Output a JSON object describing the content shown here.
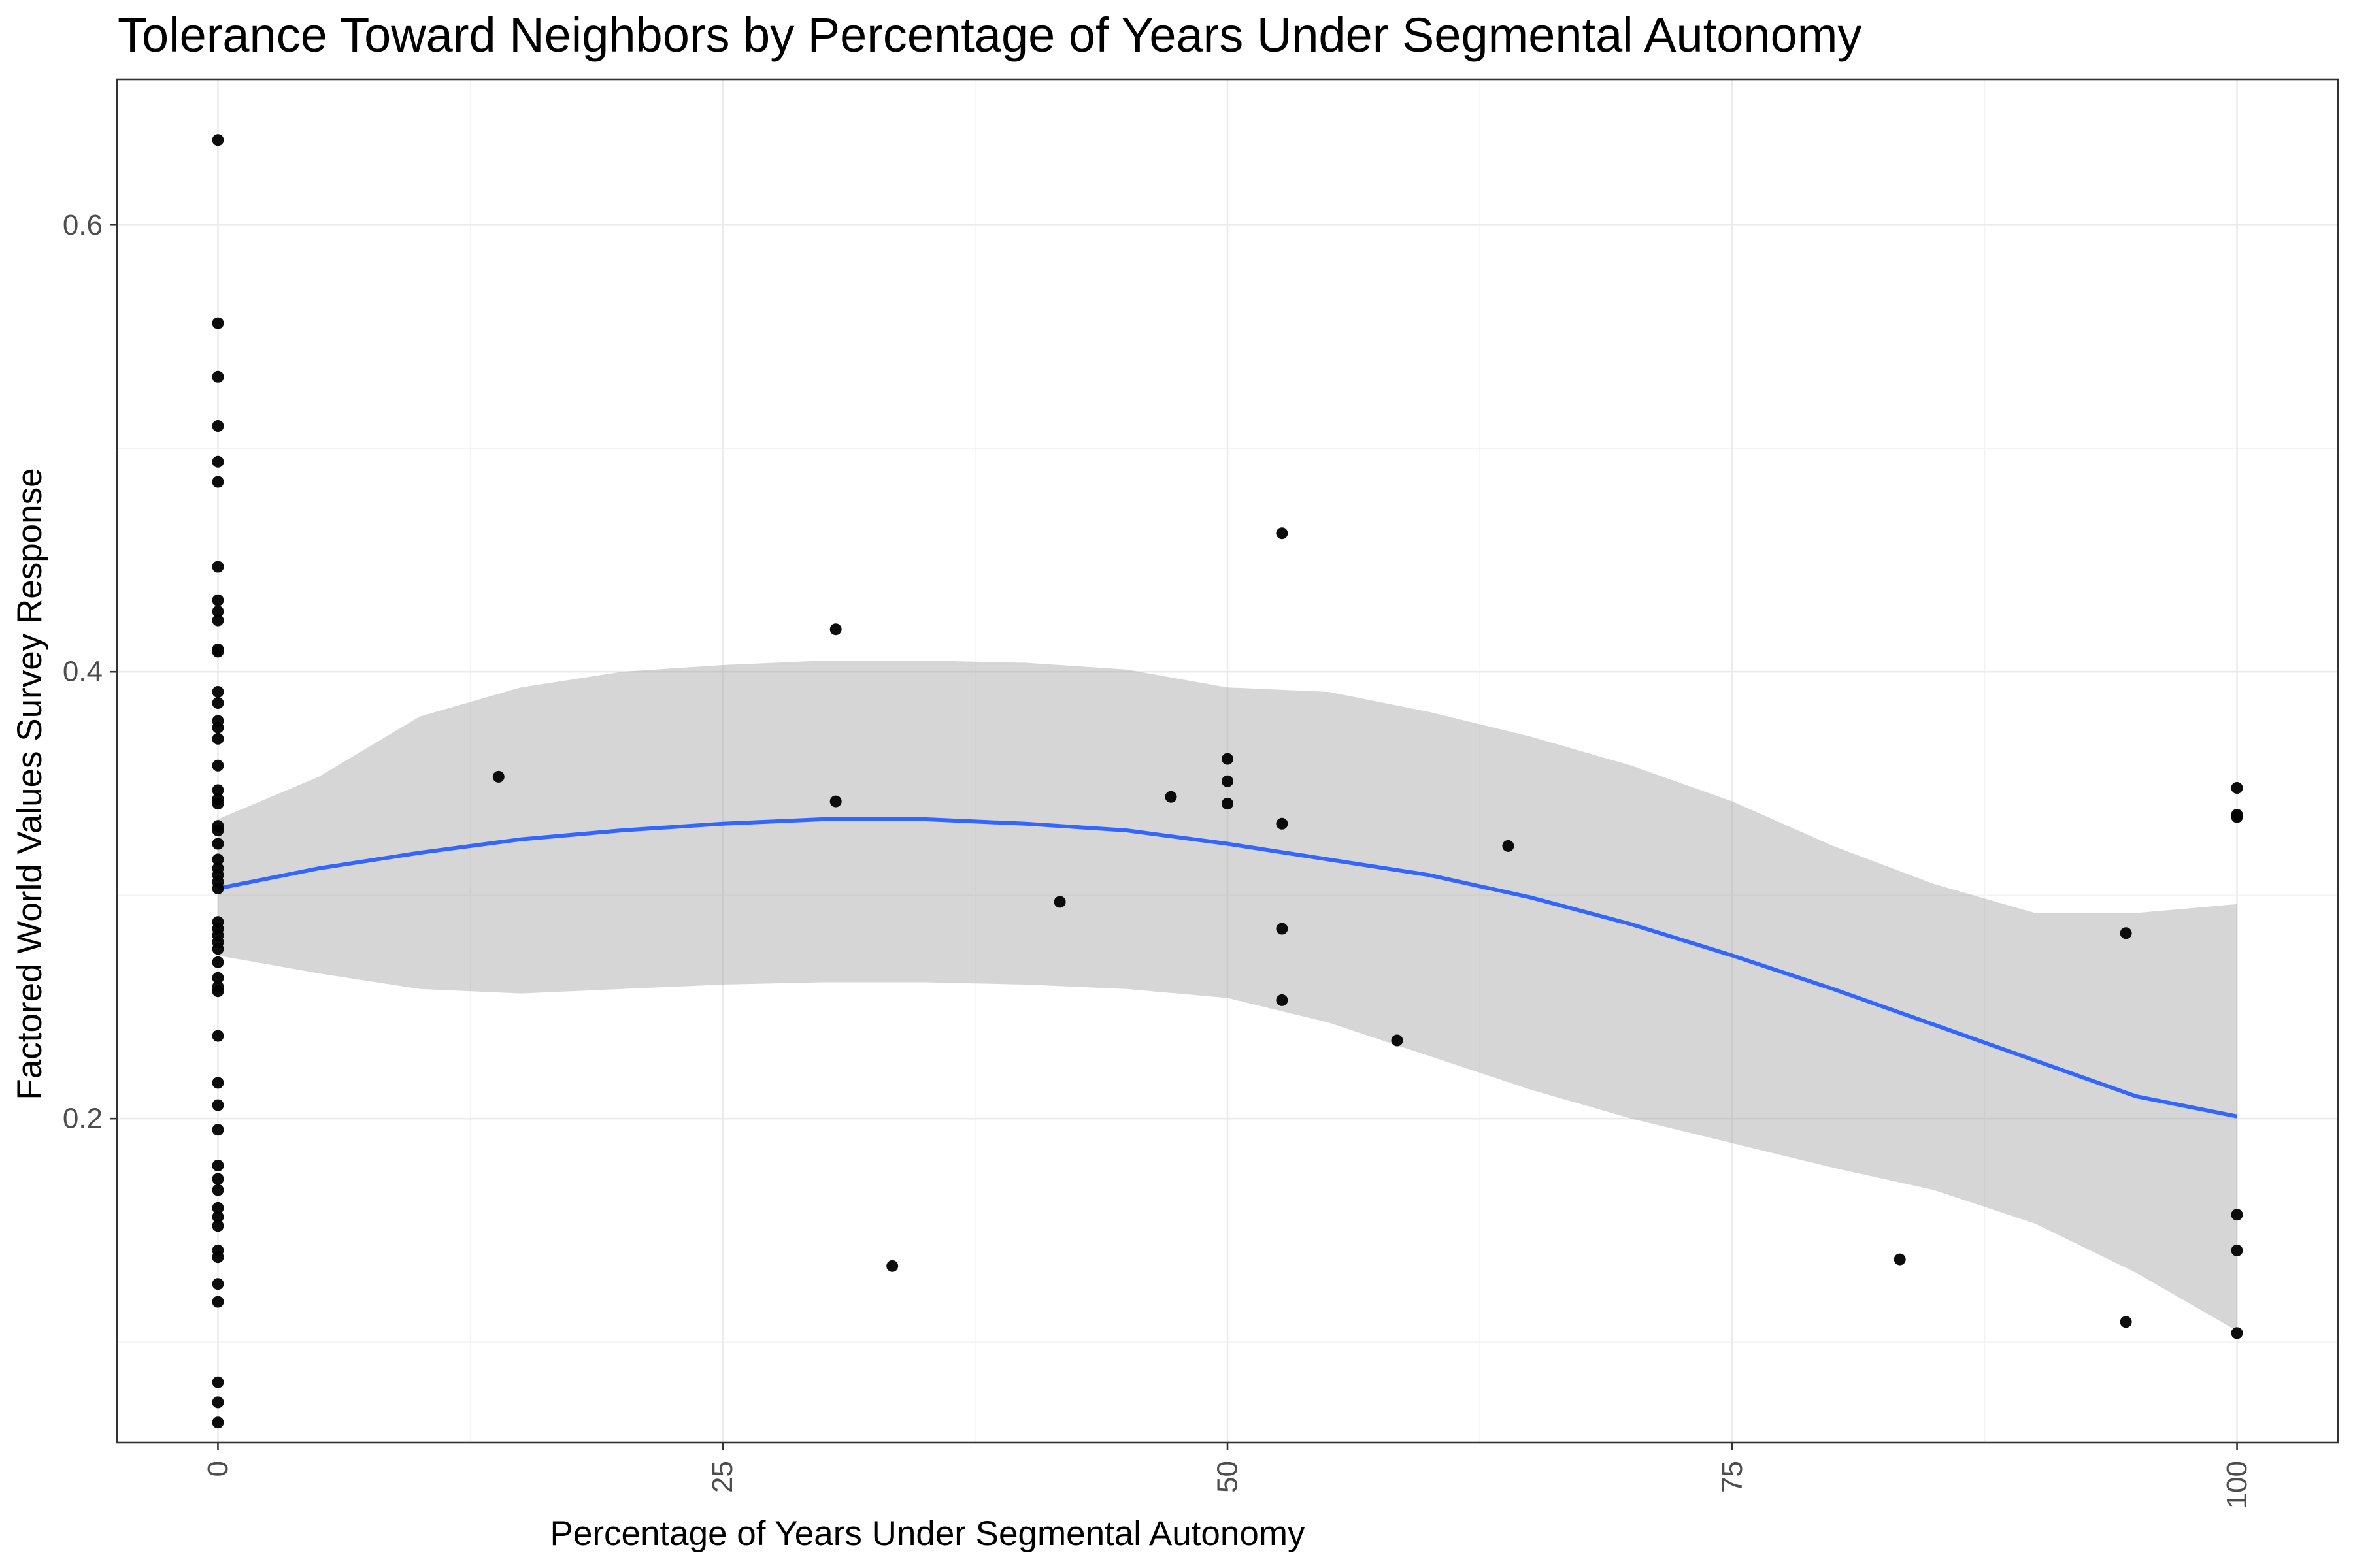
{
  "chart_data": {
    "type": "scatter",
    "title": "Tolerance Toward Neighbors by Percentage of Years Under Segmental Autonomy",
    "xlabel": "Percentage of Years Under Segmental Autonomy",
    "ylabel": "Factored World Values Survey Response",
    "xlim": [
      -5,
      105
    ],
    "ylim": [
      0.055,
      0.665
    ],
    "x_ticks": [
      0,
      25,
      50,
      75,
      100
    ],
    "x_tick_labels": [
      "0",
      "25",
      "50",
      "75",
      "100"
    ],
    "y_ticks": [
      0.2,
      0.4,
      0.6
    ],
    "y_tick_labels": [
      "0.2",
      "0.4",
      "0.6"
    ],
    "grid": true,
    "legend": "none",
    "points": [
      [
        0,
        0.638
      ],
      [
        0,
        0.556
      ],
      [
        0,
        0.532
      ],
      [
        0,
        0.51
      ],
      [
        0,
        0.494
      ],
      [
        0,
        0.485
      ],
      [
        0,
        0.447
      ],
      [
        0,
        0.432
      ],
      [
        0,
        0.427
      ],
      [
        0,
        0.423
      ],
      [
        0,
        0.41
      ],
      [
        0,
        0.409
      ],
      [
        0,
        0.391
      ],
      [
        0,
        0.386
      ],
      [
        0,
        0.378
      ],
      [
        0,
        0.375
      ],
      [
        0,
        0.37
      ],
      [
        0,
        0.358
      ],
      [
        0,
        0.347
      ],
      [
        0,
        0.343
      ],
      [
        0,
        0.341
      ],
      [
        0,
        0.331
      ],
      [
        0,
        0.329
      ],
      [
        0,
        0.323
      ],
      [
        0,
        0.316
      ],
      [
        0,
        0.312
      ],
      [
        0,
        0.309
      ],
      [
        0,
        0.306
      ],
      [
        0,
        0.303
      ],
      [
        0,
        0.288
      ],
      [
        0,
        0.285
      ],
      [
        0,
        0.282
      ],
      [
        0,
        0.279
      ],
      [
        0,
        0.276
      ],
      [
        0,
        0.27
      ],
      [
        0,
        0.263
      ],
      [
        0,
        0.259
      ],
      [
        0,
        0.257
      ],
      [
        0,
        0.237
      ],
      [
        0,
        0.216
      ],
      [
        0,
        0.206
      ],
      [
        0,
        0.195
      ],
      [
        0,
        0.179
      ],
      [
        0,
        0.173
      ],
      [
        0,
        0.168
      ],
      [
        0,
        0.16
      ],
      [
        0,
        0.156
      ],
      [
        0,
        0.152
      ],
      [
        0,
        0.141
      ],
      [
        0,
        0.138
      ],
      [
        0,
        0.126
      ],
      [
        0,
        0.118
      ],
      [
        0,
        0.082
      ],
      [
        0,
        0.073
      ],
      [
        0,
        0.064
      ],
      [
        13.9,
        0.353
      ],
      [
        30.6,
        0.419
      ],
      [
        30.6,
        0.342
      ],
      [
        33.4,
        0.134
      ],
      [
        41.7,
        0.297
      ],
      [
        47.2,
        0.344
      ],
      [
        50.0,
        0.361
      ],
      [
        50.0,
        0.351
      ],
      [
        50.0,
        0.341
      ],
      [
        52.7,
        0.462
      ],
      [
        52.7,
        0.332
      ],
      [
        52.7,
        0.285
      ],
      [
        52.7,
        0.253
      ],
      [
        58.4,
        0.235
      ],
      [
        63.9,
        0.322
      ],
      [
        83.3,
        0.137
      ],
      [
        94.5,
        0.283
      ],
      [
        94.5,
        0.109
      ],
      [
        100,
        0.348
      ],
      [
        100,
        0.336
      ],
      [
        100,
        0.335
      ],
      [
        100,
        0.157
      ],
      [
        100,
        0.141
      ],
      [
        100,
        0.104
      ]
    ],
    "smooth": {
      "method": "loess",
      "x": [
        0,
        5,
        10,
        15,
        20,
        25,
        30,
        35,
        40,
        45,
        50,
        55,
        60,
        65,
        70,
        75,
        80,
        85,
        90,
        95,
        100
      ],
      "y": [
        0.303,
        0.312,
        0.319,
        0.325,
        0.329,
        0.332,
        0.334,
        0.334,
        0.332,
        0.329,
        0.323,
        0.316,
        0.309,
        0.299,
        0.287,
        0.273,
        0.258,
        0.242,
        0.226,
        0.21,
        0.201
      ],
      "lower": [
        0.273,
        0.265,
        0.258,
        0.256,
        0.258,
        0.26,
        0.261,
        0.261,
        0.26,
        0.258,
        0.254,
        0.243,
        0.228,
        0.213,
        0.2,
        0.189,
        0.178,
        0.168,
        0.153,
        0.131,
        0.105
      ],
      "upper": [
        0.334,
        0.353,
        0.38,
        0.393,
        0.4,
        0.403,
        0.405,
        0.405,
        0.404,
        0.401,
        0.393,
        0.391,
        0.382,
        0.371,
        0.358,
        0.342,
        0.322,
        0.305,
        0.292,
        0.292,
        0.296
      ]
    },
    "colors": {
      "points": "#000000",
      "smooth_line": "#3366ff",
      "ribbon": "#999999"
    }
  }
}
